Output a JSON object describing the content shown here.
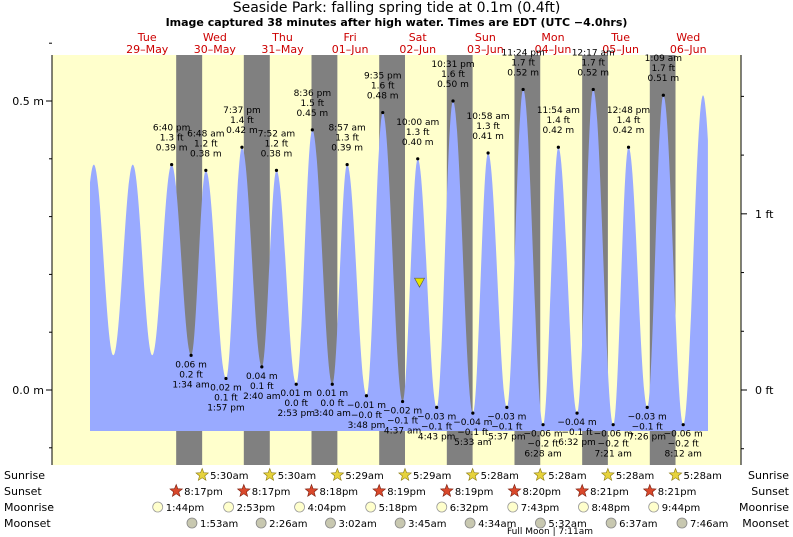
{
  "header": {
    "title": "Seaside Park: falling  spring tide at 0.1m (0.4ft)",
    "subtitle": "Image captured 38 minutes after high water. Times are EDT (UTC −4.0hrs)"
  },
  "colors": {
    "daylight": "#ffffcc",
    "night": "#808080",
    "tide_fill": "#99aaff",
    "header_text": "#cc0000",
    "marker": "#e6e600"
  },
  "chart_data": {
    "type": "area",
    "title": "Seaside Park: falling  spring tide at 0.1m (0.4ft)",
    "x_unit": "hours from Tue 29-May 00:00 EDT",
    "x_range": [
      -10.3,
      209.0
    ],
    "y_unit": "m",
    "ylim": [
      -0.215,
      0.62
    ],
    "left_axis_ticks": [
      {
        "label": "0.5 m",
        "value": 0.5
      },
      {
        "label": "0.0 m",
        "value": 0.0
      }
    ],
    "right_axis_ticks": [
      {
        "label": "1 ft",
        "value": 0.3048
      },
      {
        "label": "0 ft",
        "value": 0.0
      }
    ],
    "days": [
      {
        "dow": "Tue",
        "date": "29–May",
        "hour": 10
      },
      {
        "dow": "Wed",
        "date": "30–May",
        "hour": 34
      },
      {
        "dow": "Thu",
        "date": "31–May",
        "hour": 58
      },
      {
        "dow": "Fri",
        "date": "01–Jun",
        "hour": 82
      },
      {
        "dow": "Sat",
        "date": "02–Jun",
        "hour": 106
      },
      {
        "dow": "Sun",
        "date": "03–Jun",
        "hour": 130
      },
      {
        "dow": "Mon",
        "date": "04–Jun",
        "hour": 154
      },
      {
        "dow": "Tue",
        "date": "05–Jun",
        "hour": 178
      },
      {
        "dow": "Wed",
        "date": "06–Jun",
        "hour": 202
      }
    ],
    "night_intervals": [
      [
        20.28,
        29.5
      ],
      [
        44.28,
        53.5
      ],
      [
        68.3,
        77.48
      ],
      [
        92.32,
        101.48
      ],
      [
        116.32,
        125.47
      ],
      [
        140.33,
        149.47
      ],
      [
        164.35,
        173.47
      ],
      [
        188.35,
        197.47
      ]
    ],
    "tides": [
      {
        "type": "high",
        "time": "6:40 pm",
        "ft": "1.3 ft",
        "m": "0.39 m",
        "t": 18.67,
        "h": 0.39
      },
      {
        "type": "low",
        "time": "1:34 am",
        "ft": "0.2 ft",
        "m": "0.06 m",
        "t": 25.57,
        "h": 0.06
      },
      {
        "type": "high",
        "time": "6:48 am",
        "ft": "1.2 ft",
        "m": "0.38 m",
        "t": 30.8,
        "h": 0.38
      },
      {
        "type": "low",
        "time": "1:57 pm",
        "ft": "0.1 ft",
        "m": "0.02 m",
        "t": 37.95,
        "h": 0.02
      },
      {
        "type": "high",
        "time": "7:37 pm",
        "ft": "1.4 ft",
        "m": "0.42 m",
        "t": 43.62,
        "h": 0.42
      },
      {
        "type": "low",
        "time": "2:40 am",
        "ft": "0.1 ft",
        "m": "0.04 m",
        "t": 50.67,
        "h": 0.04
      },
      {
        "type": "high",
        "time": "7:52 am",
        "ft": "1.2 ft",
        "m": "0.38 m",
        "t": 55.87,
        "h": 0.38
      },
      {
        "type": "low",
        "time": "2:53 pm",
        "ft": "0.0 ft",
        "m": "0.01 m",
        "t": 62.88,
        "h": 0.01
      },
      {
        "type": "high",
        "time": "8:36 pm",
        "ft": "1.5 ft",
        "m": "0.45 m",
        "t": 68.6,
        "h": 0.45
      },
      {
        "type": "low",
        "time": "3:40 am",
        "ft": "0.0 ft",
        "m": "0.01 m",
        "t": 75.67,
        "h": 0.01
      },
      {
        "type": "high",
        "time": "8:57 am",
        "ft": "1.3 ft",
        "m": "0.39 m",
        "t": 80.95,
        "h": 0.39
      },
      {
        "type": "low",
        "time": "3:48 pm",
        "ft": "−0.0 ft",
        "m": "−0.01 m",
        "t": 87.8,
        "h": -0.01
      },
      {
        "type": "high",
        "time": "9:35 pm",
        "ft": "1.6 ft",
        "m": "0.48 m",
        "t": 93.58,
        "h": 0.48
      },
      {
        "type": "low",
        "time": "4:37 am",
        "ft": "−0.1 ft",
        "m": "−0.02 m",
        "t": 100.62,
        "h": -0.02
      },
      {
        "type": "high",
        "time": "10:00 am",
        "ft": "1.3 ft",
        "m": "0.40 m",
        "t": 106.0,
        "h": 0.4
      },
      {
        "type": "low",
        "time": "4:43 pm",
        "ft": "−0.1 ft",
        "m": "−0.03 m",
        "t": 112.72,
        "h": -0.03
      },
      {
        "type": "high",
        "time": "10:31 pm",
        "ft": "1.6 ft",
        "m": "0.50 m",
        "t": 118.52,
        "h": 0.5
      },
      {
        "type": "low",
        "time": "5:33 am",
        "ft": "−0.1 ft",
        "m": "−0.04 m",
        "t": 125.55,
        "h": -0.04
      },
      {
        "type": "high",
        "time": "10:58 am",
        "ft": "1.3 ft",
        "m": "0.41 m",
        "t": 130.97,
        "h": 0.41
      },
      {
        "type": "low",
        "time": "5:37 pm",
        "ft": "−0.1 ft",
        "m": "−0.03 m",
        "t": 137.62,
        "h": -0.03
      },
      {
        "type": "high",
        "time": "11:24 pm",
        "ft": "1.7 ft",
        "m": "0.52 m",
        "t": 143.4,
        "h": 0.52
      },
      {
        "type": "low",
        "time": "6:28 am",
        "ft": "−0.2 ft",
        "m": "−0.06 m",
        "t": 150.47,
        "h": -0.06
      },
      {
        "type": "high",
        "time": "11:54 am",
        "ft": "1.4 ft",
        "m": "0.42 m",
        "t": 155.9,
        "h": 0.42
      },
      {
        "type": "low",
        "time": "6:32 pm",
        "ft": "−0.1 ft",
        "m": "−0.04 m",
        "t": 162.53,
        "h": -0.04
      },
      {
        "type": "high",
        "time": "12:17 am",
        "ft": "1.7 ft",
        "m": "0.52 m",
        "t": 168.28,
        "h": 0.52
      },
      {
        "type": "low",
        "time": "7:21 am",
        "ft": "−0.2 ft",
        "m": "−0.06 m",
        "t": 175.35,
        "h": -0.06
      },
      {
        "type": "high",
        "time": "12:48 pm",
        "ft": "1.4 ft",
        "m": "0.42 m",
        "t": 180.8,
        "h": 0.42
      },
      {
        "type": "low",
        "time": "7:26 pm",
        "ft": "−0.1 ft",
        "m": "−0.03 m",
        "t": 187.43,
        "h": -0.03
      },
      {
        "type": "high",
        "time": "1:09 am",
        "ft": "1.7 ft",
        "m": "0.51 m",
        "t": 193.15,
        "h": 0.51
      },
      {
        "type": "low",
        "time": "8:12 am",
        "ft": "−0.2 ft",
        "m": "−0.06 m",
        "t": 200.2,
        "h": -0.06
      }
    ],
    "current": {
      "t": 106.63,
      "h": 0.1
    }
  },
  "footer": {
    "rows": [
      {
        "left": "Sunrise",
        "right": "Sunrise"
      },
      {
        "left": "Sunset",
        "right": "Sunset"
      },
      {
        "left": "Moonrise",
        "right": "Moonrise"
      },
      {
        "left": "Moonset",
        "right": "Moonset"
      }
    ],
    "sunrise": [
      {
        "label": "5:30am",
        "t": 29.5
      },
      {
        "label": "5:30am",
        "t": 53.5
      },
      {
        "label": "5:29am",
        "t": 77.48
      },
      {
        "label": "5:29am",
        "t": 101.48
      },
      {
        "label": "5:28am",
        "t": 125.47
      },
      {
        "label": "5:28am",
        "t": 149.47
      },
      {
        "label": "5:28am",
        "t": 173.47
      },
      {
        "label": "5:28am",
        "t": 197.47
      }
    ],
    "sunset": [
      {
        "label": "8:17pm",
        "t": 20.28
      },
      {
        "label": "8:17pm",
        "t": 44.28
      },
      {
        "label": "8:18pm",
        "t": 68.3
      },
      {
        "label": "8:19pm",
        "t": 92.32
      },
      {
        "label": "8:19pm",
        "t": 116.32
      },
      {
        "label": "8:20pm",
        "t": 140.33
      },
      {
        "label": "8:21pm",
        "t": 164.35
      },
      {
        "label": "8:21pm",
        "t": 188.35
      }
    ],
    "moonrise": [
      {
        "label": "1:44pm",
        "t": 13.73
      },
      {
        "label": "2:53pm",
        "t": 38.88
      },
      {
        "label": "4:04pm",
        "t": 64.07
      },
      {
        "label": "5:18pm",
        "t": 89.3
      },
      {
        "label": "6:32pm",
        "t": 114.53
      },
      {
        "label": "7:43pm",
        "t": 139.72
      },
      {
        "label": "8:48pm",
        "t": 164.8
      },
      {
        "label": "9:44pm",
        "t": 189.73
      }
    ],
    "moonset": [
      {
        "label": "1:53am",
        "t": 25.88
      },
      {
        "label": "2:26am",
        "t": 50.43
      },
      {
        "label": "3:02am",
        "t": 75.03
      },
      {
        "label": "3:45am",
        "t": 99.75
      },
      {
        "label": "4:34am",
        "t": 124.57
      },
      {
        "label": "5:32am",
        "t": 149.53
      },
      {
        "label": "6:37am",
        "t": 174.62
      },
      {
        "label": "7:46am",
        "t": 199.77
      }
    ],
    "moon_phase": "Full Moon | 7:11am"
  }
}
